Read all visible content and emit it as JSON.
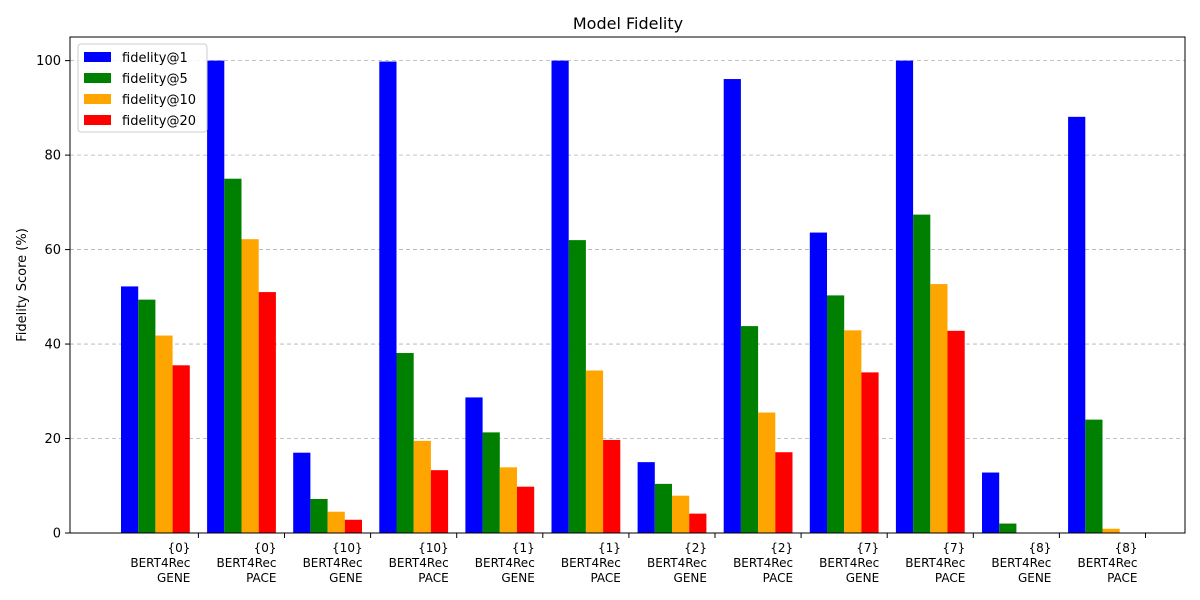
{
  "chart_data": {
    "type": "bar",
    "title": "Model Fidelity",
    "xlabel": "",
    "ylabel": "Fidelity Score (%)",
    "ylim": [
      0,
      105
    ],
    "yticks": [
      0,
      20,
      40,
      60,
      80,
      100
    ],
    "grid": "y-dashed",
    "legend_position": "top-left",
    "categories": [
      [
        "{0}",
        "BERT4Rec",
        "GENE"
      ],
      [
        "{0}",
        "BERT4Rec",
        "PACE"
      ],
      [
        "{10}",
        "BERT4Rec",
        "GENE"
      ],
      [
        "{10}",
        "BERT4Rec",
        "PACE"
      ],
      [
        "{1}",
        "BERT4Rec",
        "GENE"
      ],
      [
        "{1}",
        "BERT4Rec",
        "PACE"
      ],
      [
        "{2}",
        "BERT4Rec",
        "GENE"
      ],
      [
        "{2}",
        "BERT4Rec",
        "PACE"
      ],
      [
        "{7}",
        "BERT4Rec",
        "GENE"
      ],
      [
        "{7}",
        "BERT4Rec",
        "PACE"
      ],
      [
        "{8}",
        "BERT4Rec",
        "GENE"
      ],
      [
        "{8}",
        "BERT4Rec",
        "PACE"
      ]
    ],
    "series": [
      {
        "name": "fidelity@1",
        "color": "#0000ff",
        "values": [
          52.2,
          100,
          17,
          99.8,
          28.7,
          100,
          15,
          96.1,
          63.6,
          100,
          12.8,
          88.1
        ]
      },
      {
        "name": "fidelity@5",
        "color": "#008000",
        "values": [
          49.4,
          75,
          7.2,
          38.1,
          21.3,
          62,
          10.4,
          43.8,
          50.3,
          67.4,
          2,
          24
        ]
      },
      {
        "name": "fidelity@10",
        "color": "#ffa500",
        "values": [
          41.8,
          62.2,
          4.5,
          19.5,
          13.9,
          34.4,
          7.9,
          25.5,
          42.9,
          52.7,
          0,
          0.9
        ]
      },
      {
        "name": "fidelity@20",
        "color": "#ff0000",
        "values": [
          35.5,
          51,
          2.8,
          13.3,
          9.8,
          19.7,
          4.1,
          17.1,
          34,
          42.8,
          0,
          0
        ]
      }
    ]
  }
}
